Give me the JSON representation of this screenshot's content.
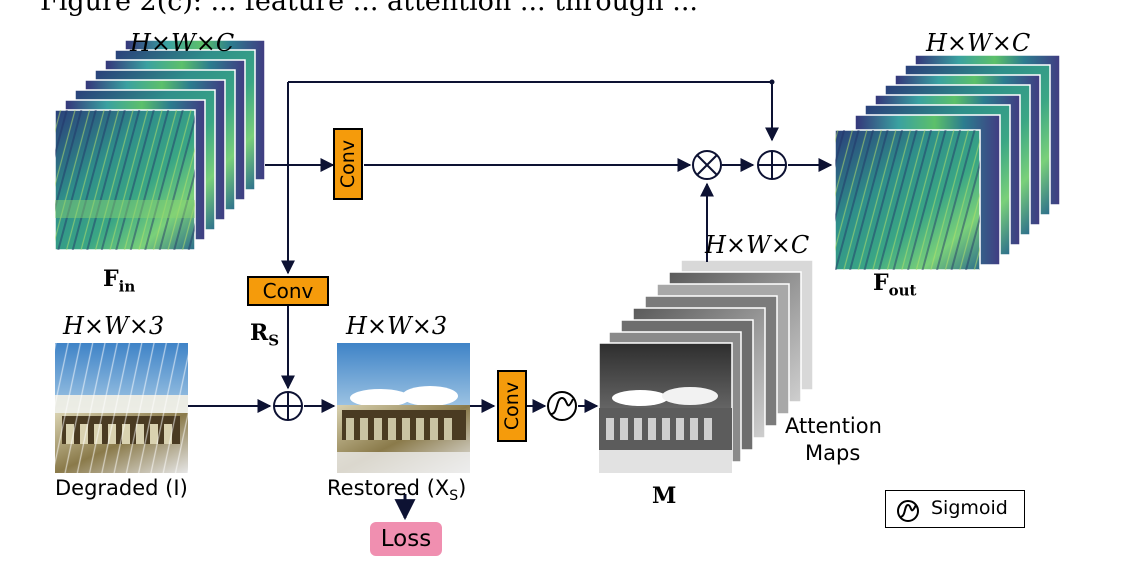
{
  "header_cut_text": "Figure 2(c): ... feature ... attention ... through ...",
  "labels": {
    "fin_dim": "H×W×C",
    "fout_dim": "H×W×C",
    "attn_dim": "H×W×C",
    "degraded_dim": "H×W×3",
    "restored_dim": "H×W×3",
    "fin": "F",
    "fin_sub": "in",
    "fout": "F",
    "fout_sub": "out",
    "rs": "R",
    "rs_sub": "S",
    "m": "M",
    "degraded": "Degraded (I)",
    "restored": "Restored (X",
    "restored_sub": "S",
    "restored_end": ")",
    "attention": "Attention",
    "maps": "Maps"
  },
  "blocks": {
    "conv_top": "Conv",
    "conv_mid": "Conv",
    "conv_bottom": "Conv",
    "loss": "Loss"
  },
  "legend": {
    "label": "Sigmoid"
  },
  "colors": {
    "conv_fill": "#f59b0b",
    "loss_fill": "#f08fb0",
    "arrow": "#0d1233",
    "feature_dark": "#2a3f7a",
    "feature_light": "#7ad07a"
  }
}
